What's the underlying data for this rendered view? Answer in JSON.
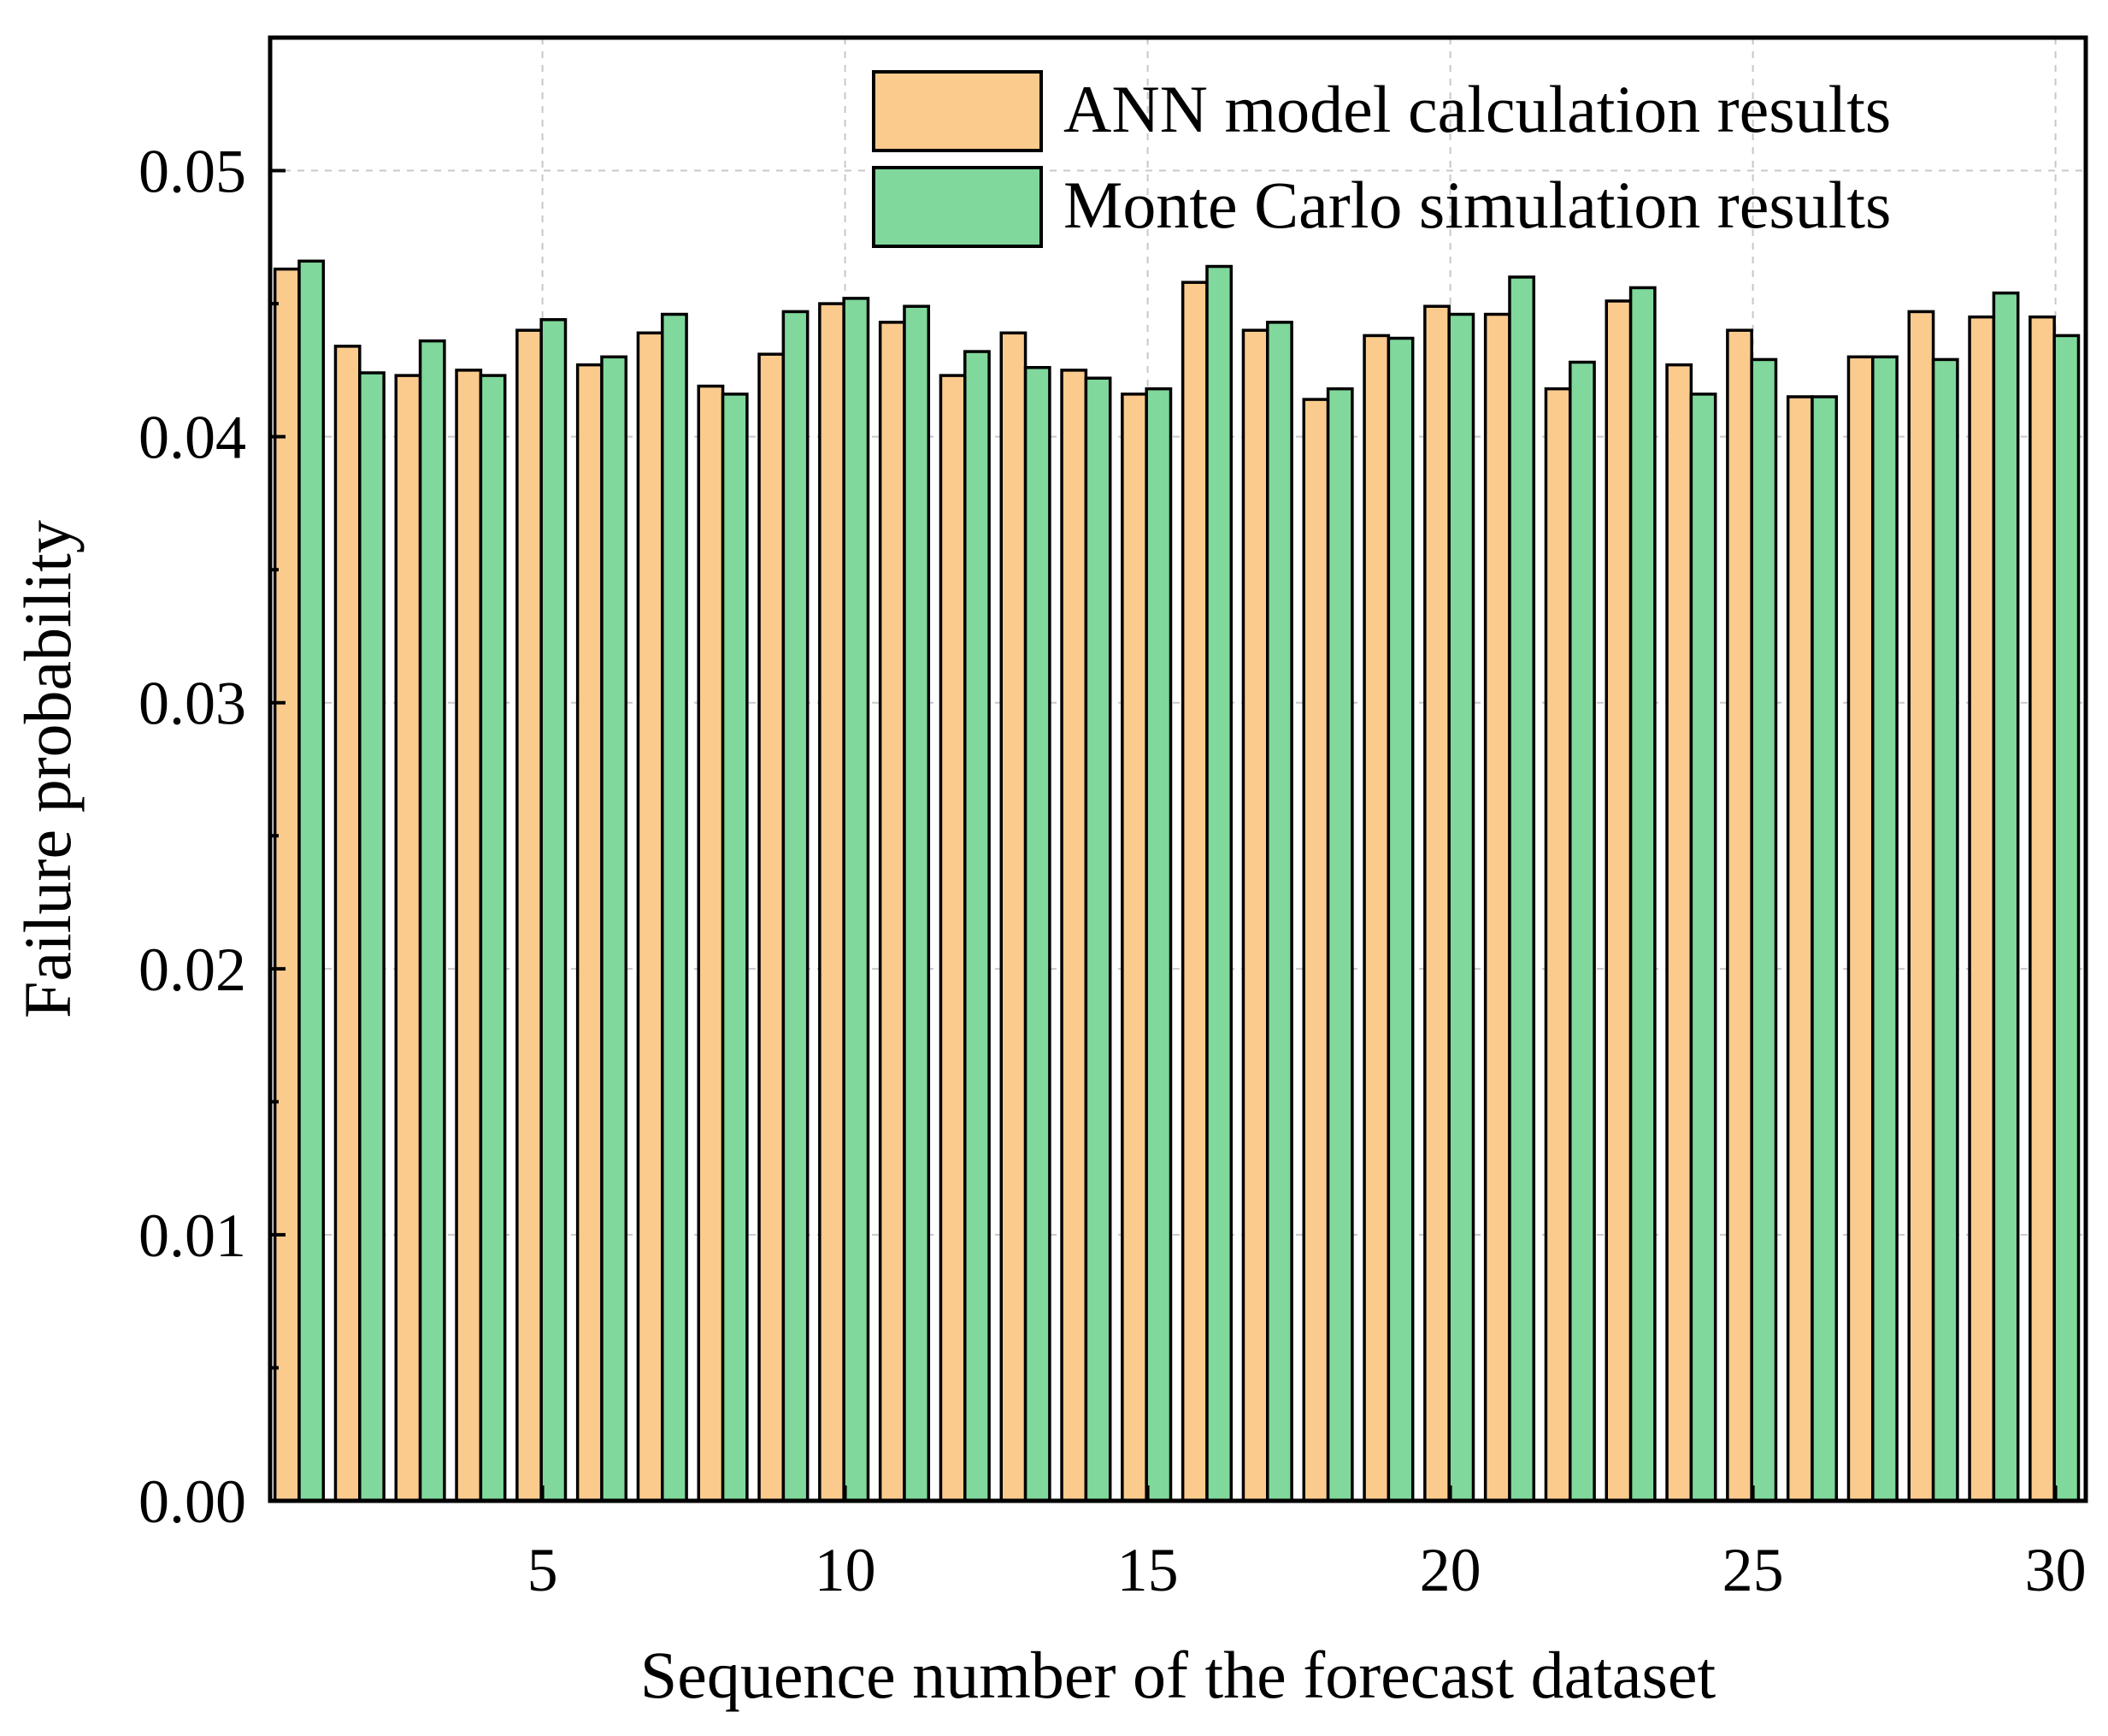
{
  "chart_data": {
    "type": "bar",
    "title": "",
    "xlabel": "Sequence number of the forecast dataset",
    "ylabel": "Failure probability",
    "xlim": [
      0.5,
      30.5
    ],
    "ylim": [
      0,
      0.055
    ],
    "x_ticks": [
      5,
      10,
      15,
      20,
      25,
      30
    ],
    "y_ticks": [
      0.0,
      0.01,
      0.02,
      0.03,
      0.04,
      0.05
    ],
    "y_tick_labels": [
      "0.00",
      "0.01",
      "0.02",
      "0.03",
      "0.04",
      "0.05"
    ],
    "x_tick_labels": [
      "5",
      "10",
      "15",
      "20",
      "25",
      "30"
    ],
    "grid": true,
    "legend_position": "top-right",
    "categories": [
      1,
      2,
      3,
      4,
      5,
      6,
      7,
      8,
      9,
      10,
      11,
      12,
      13,
      14,
      15,
      16,
      17,
      18,
      19,
      20,
      21,
      22,
      23,
      24,
      25,
      26,
      27,
      28,
      29,
      30
    ],
    "series": [
      {
        "name": "ANN model calculation results",
        "color": "#FBCB8E",
        "values": [
          0.0463,
          0.0434,
          0.0423,
          0.0425,
          0.044,
          0.0427,
          0.0439,
          0.0419,
          0.0431,
          0.045,
          0.0443,
          0.0423,
          0.0439,
          0.0425,
          0.0416,
          0.0458,
          0.044,
          0.0414,
          0.0438,
          0.0449,
          0.0446,
          0.0418,
          0.0451,
          0.0427,
          0.044,
          0.0415,
          0.043,
          0.0447,
          0.0445,
          0.0445
        ]
      },
      {
        "name": "Monte Carlo simulation results",
        "color": "#80D89C",
        "values": [
          0.0466,
          0.0424,
          0.0436,
          0.0423,
          0.0444,
          0.043,
          0.0446,
          0.0416,
          0.0447,
          0.0452,
          0.0449,
          0.0432,
          0.0426,
          0.0422,
          0.0418,
          0.0464,
          0.0443,
          0.0418,
          0.0437,
          0.0446,
          0.046,
          0.0428,
          0.0456,
          0.0416,
          0.0429,
          0.0415,
          0.043,
          0.0429,
          0.0454,
          0.0438
        ]
      }
    ]
  }
}
